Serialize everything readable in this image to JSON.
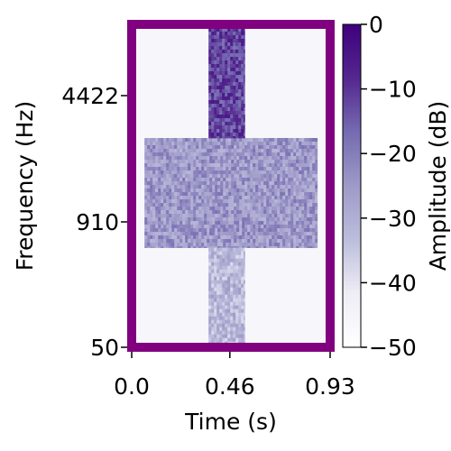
{
  "chart_data": {
    "type": "heatmap",
    "title": "",
    "xlabel": "Time (s)",
    "ylabel": "Frequency (Hz)",
    "x_ticks": [
      {
        "value": 0.0,
        "label": "0.0"
      },
      {
        "value": 0.46,
        "label": "0.46"
      },
      {
        "value": 0.93,
        "label": "0.93"
      }
    ],
    "xlim": [
      0.0,
      0.93
    ],
    "y_scale": "frequency (non-linear)",
    "y_ticks": [
      {
        "value": 50,
        "label": "50"
      },
      {
        "value": 910,
        "label": "910"
      },
      {
        "value": 4422,
        "label": "4422"
      }
    ],
    "colorbar": {
      "label": "Amplitude (dB)",
      "range": [
        -50,
        0
      ],
      "ticks": [
        {
          "value": 0,
          "label": "0"
        },
        {
          "value": -10,
          "label": "−10"
        },
        {
          "value": -20,
          "label": "−20"
        },
        {
          "value": -30,
          "label": "−30"
        },
        {
          "value": -40,
          "label": "−40"
        },
        {
          "value": -50,
          "label": "−50"
        }
      ],
      "colormap": "Purples",
      "colors": [
        "#ffffff",
        "#efedf5",
        "#bcbddc",
        "#9e9ac8",
        "#756bb1",
        "#54278f",
        "#3f007d"
      ]
    },
    "frame_color": "#800080",
    "grid": false,
    "regions": [
      {
        "name": "background",
        "t_start": 0.0,
        "t_end": 0.93,
        "f_start": 50,
        "f_end": 8000,
        "level_db": -46
      },
      {
        "name": "broadband-block",
        "t_start": 0.06,
        "t_end": 0.87,
        "f_start": 500,
        "f_end": 2600,
        "level_db": -25
      },
      {
        "name": "vertical-stem-high",
        "t_start": 0.36,
        "t_end": 0.53,
        "f_start": 2600,
        "f_end": 8000,
        "level_db": -12
      },
      {
        "name": "vertical-stem-low",
        "t_start": 0.36,
        "t_end": 0.53,
        "f_start": 50,
        "f_end": 500,
        "level_db": -32
      }
    ]
  }
}
